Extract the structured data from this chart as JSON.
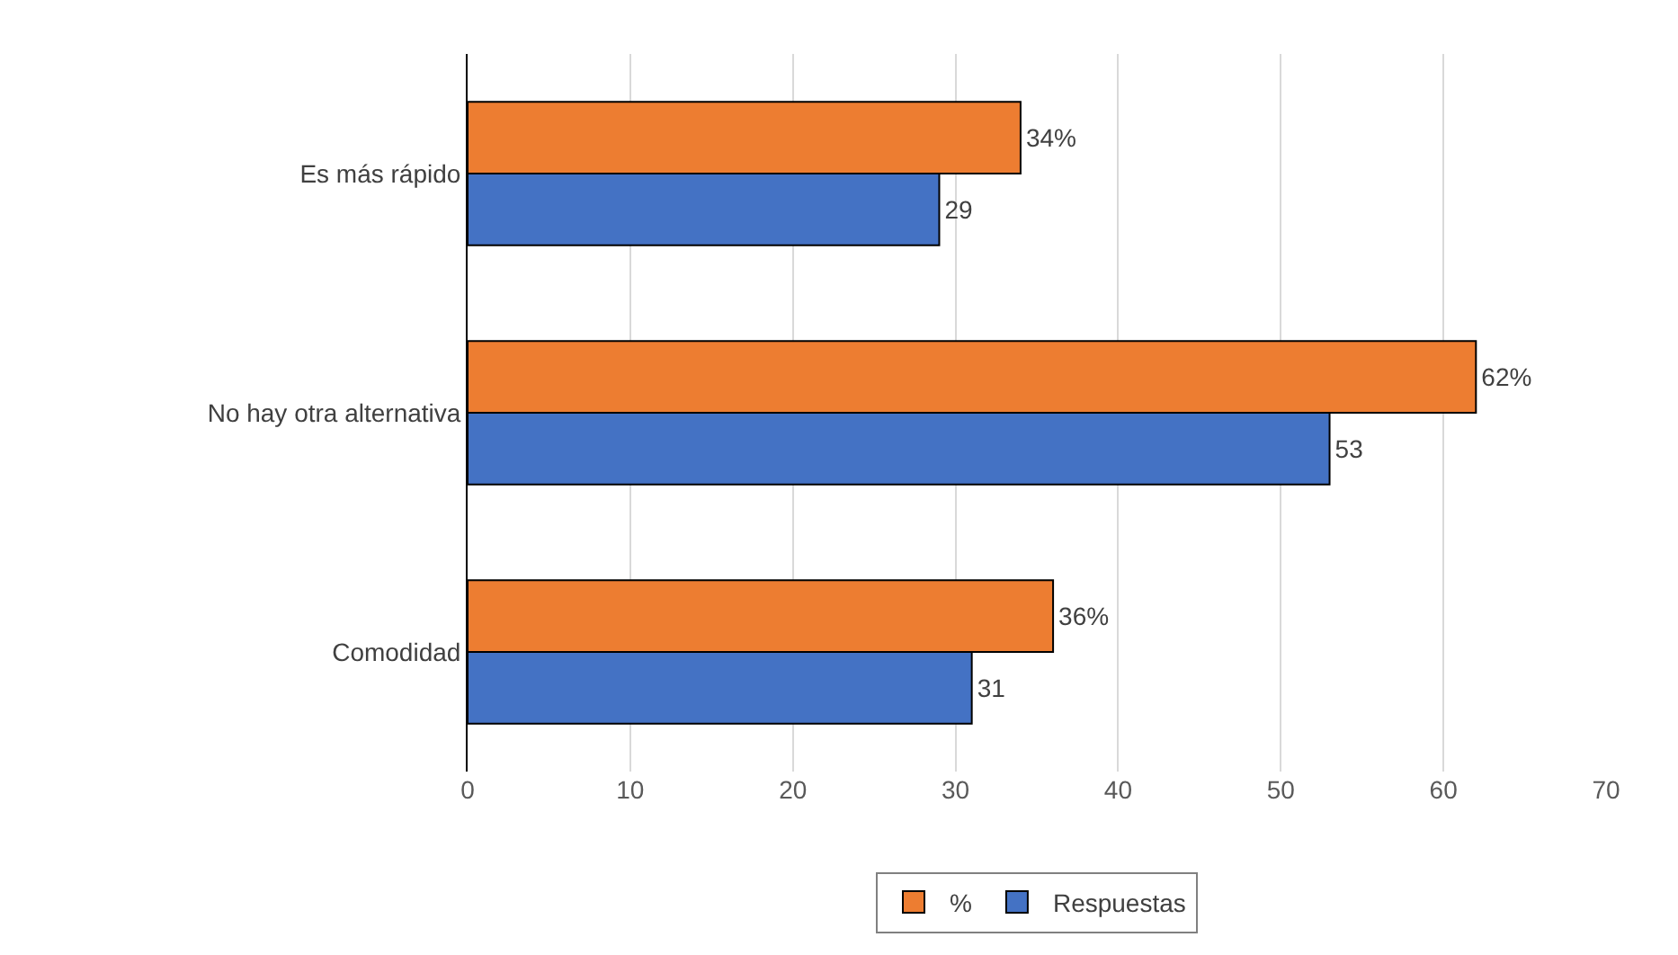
{
  "chart_data": {
    "type": "bar",
    "orientation": "horizontal",
    "categories": [
      "Es más rápido",
      "No hay otra alternativa",
      "Comodidad"
    ],
    "series": [
      {
        "name": "%",
        "color": "#ed7d31",
        "values": [
          34,
          62,
          36
        ],
        "value_labels": [
          "34%",
          "62%",
          "36%"
        ]
      },
      {
        "name": "Respuestas",
        "color": "#4472c4",
        "values": [
          29,
          53,
          31
        ],
        "value_labels": [
          "29",
          "53",
          "31"
        ]
      }
    ],
    "xlim": [
      0,
      70
    ],
    "xticks": [
      0,
      10,
      20,
      30,
      40,
      50,
      60,
      70
    ],
    "grid": "x",
    "legend": "bottom"
  }
}
